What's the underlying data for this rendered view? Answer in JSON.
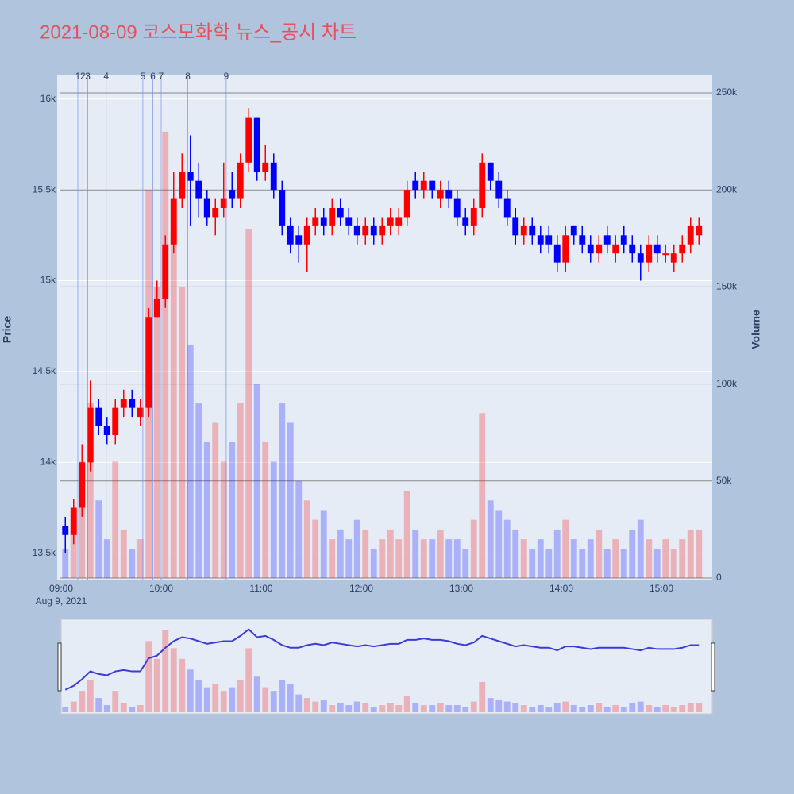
{
  "chart_data": {
    "type": "candlestick",
    "title": "2021-08-09 코스모화학 뉴스_공시 차트",
    "y_label": "Price",
    "y2_label": "Volume",
    "x_date_label": "Aug 9, 2021",
    "increasing_color": "#ff0000",
    "decreasing_color": "#0000ff",
    "xlim": [
      "09:00",
      "15:30"
    ],
    "xticks": [
      "09:00",
      "10:00",
      "11:00",
      "12:00",
      "13:00",
      "14:00",
      "15:00"
    ],
    "ylim": [
      13350,
      16130
    ],
    "yticks": [
      {
        "value": 13500,
        "label": "13.5k"
      },
      {
        "value": 14000,
        "label": "14k"
      },
      {
        "value": 14500,
        "label": "14.5k"
      },
      {
        "value": 15000,
        "label": "15k"
      },
      {
        "value": 15500,
        "label": "15.5k"
      },
      {
        "value": 16000,
        "label": "16k"
      }
    ],
    "y2lim": [
      0,
      250000
    ],
    "y2ticks": [
      0,
      {
        "value": 50000,
        "label": "50k"
      },
      {
        "value": 100000,
        "label": "100k"
      },
      {
        "value": 150000,
        "label": "150k"
      },
      {
        "value": 200000,
        "label": "200k"
      },
      {
        "value": 250000,
        "label": "250k"
      }
    ],
    "annotations": [
      {
        "label": "1",
        "x": "09:10"
      },
      {
        "label": "2",
        "x": "09:13"
      },
      {
        "label": "3",
        "x": "09:16"
      },
      {
        "label": "4",
        "x": "09:27"
      },
      {
        "label": "5",
        "x": "09:49"
      },
      {
        "label": "6",
        "x": "09:55"
      },
      {
        "label": "7",
        "x": "10:00"
      },
      {
        "label": "8",
        "x": "10:16"
      },
      {
        "label": "9",
        "x": "10:39"
      }
    ],
    "x": [
      "09:00",
      "09:05",
      "09:10",
      "09:15",
      "09:20",
      "09:25",
      "09:30",
      "09:35",
      "09:40",
      "09:45",
      "09:50",
      "09:55",
      "10:00",
      "10:05",
      "10:10",
      "10:15",
      "10:20",
      "10:25",
      "10:30",
      "10:35",
      "10:40",
      "10:45",
      "10:50",
      "10:55",
      "11:00",
      "11:05",
      "11:10",
      "11:15",
      "11:20",
      "11:25",
      "11:30",
      "11:35",
      "11:40",
      "11:45",
      "11:50",
      "11:55",
      "12:00",
      "12:05",
      "12:10",
      "12:15",
      "12:20",
      "12:25",
      "12:30",
      "12:35",
      "12:40",
      "12:45",
      "12:50",
      "12:55",
      "13:00",
      "13:05",
      "13:10",
      "13:15",
      "13:20",
      "13:25",
      "13:30",
      "13:35",
      "13:40",
      "13:45",
      "13:50",
      "13:55",
      "14:00",
      "14:05",
      "14:10",
      "14:15",
      "14:20",
      "14:25",
      "14:30",
      "14:35",
      "14:40",
      "14:45",
      "14:50",
      "14:55",
      "15:00",
      "15:05",
      "15:10",
      "15:15",
      "15:20"
    ],
    "open": [
      13650,
      13600,
      13750,
      14000,
      14300,
      14200,
      14150,
      14300,
      14350,
      14250,
      14300,
      14800,
      14900,
      15200,
      15450,
      15600,
      15550,
      15450,
      15350,
      15400,
      15500,
      15450,
      15650,
      15900,
      15600,
      15650,
      15500,
      15300,
      15250,
      15200,
      15300,
      15350,
      15300,
      15400,
      15350,
      15300,
      15250,
      15300,
      15250,
      15300,
      15300,
      15350,
      15550,
      15500,
      15550,
      15450,
      15500,
      15450,
      15350,
      15300,
      15400,
      15650,
      15550,
      15450,
      15350,
      15250,
      15300,
      15250,
      15250,
      15200,
      15100,
      15300,
      15250,
      15200,
      15150,
      15250,
      15150,
      15250,
      15200,
      15150,
      15100,
      15200,
      15150,
      15100,
      15150,
      15200,
      15250
    ],
    "high": [
      13700,
      13800,
      14100,
      14450,
      14350,
      14250,
      14350,
      14400,
      14400,
      14350,
      14850,
      15000,
      15250,
      15600,
      15700,
      15800,
      15650,
      15500,
      15450,
      15650,
      15600,
      15700,
      15950,
      15900,
      15750,
      15700,
      15550,
      15350,
      15300,
      15350,
      15400,
      15400,
      15450,
      15450,
      15400,
      15350,
      15350,
      15350,
      15350,
      15400,
      15400,
      15550,
      15600,
      15600,
      15550,
      15550,
      15550,
      15500,
      15400,
      15450,
      15700,
      15650,
      15600,
      15500,
      15400,
      15350,
      15350,
      15300,
      15300,
      15250,
      15300,
      15300,
      15300,
      15250,
      15250,
      15300,
      15250,
      15300,
      15250,
      15200,
      15250,
      15250,
      15200,
      15200,
      15250,
      15350,
      15350
    ],
    "low": [
      13500,
      13550,
      13700,
      13950,
      14150,
      14100,
      14100,
      14250,
      14250,
      14200,
      14250,
      14800,
      14850,
      15150,
      15400,
      15300,
      15350,
      15300,
      15250,
      15350,
      15400,
      15400,
      15600,
      15550,
      15550,
      15450,
      15250,
      15150,
      15100,
      15050,
      15250,
      15250,
      15250,
      15300,
      15250,
      15200,
      15200,
      15200,
      15200,
      15250,
      15250,
      15300,
      15450,
      15450,
      15450,
      15400,
      15400,
      15300,
      15250,
      15250,
      15350,
      15500,
      15400,
      15300,
      15200,
      15200,
      15200,
      15150,
      15150,
      15050,
      15050,
      15200,
      15150,
      15100,
      15100,
      15150,
      15100,
      15150,
      15100,
      15000,
      15050,
      15100,
      15100,
      15050,
      15100,
      15150,
      15200
    ],
    "close": [
      13600,
      13750,
      14000,
      14300,
      14200,
      14150,
      14300,
      14350,
      14300,
      14300,
      14800,
      14900,
      15200,
      15450,
      15600,
      15550,
      15450,
      15350,
      15400,
      15450,
      15450,
      15650,
      15900,
      15600,
      15650,
      15500,
      15300,
      15200,
      15200,
      15300,
      15350,
      15300,
      15400,
      15350,
      15300,
      15250,
      15300,
      15250,
      15300,
      15350,
      15350,
      15500,
      15500,
      15550,
      15500,
      15500,
      15450,
      15350,
      15300,
      15400,
      15650,
      15550,
      15450,
      15350,
      15250,
      15300,
      15250,
      15200,
      15200,
      15100,
      15250,
      15250,
      15200,
      15150,
      15200,
      15200,
      15200,
      15200,
      15150,
      15100,
      15200,
      15150,
      15150,
      15150,
      15200,
      15300,
      15300
    ],
    "volume": [
      15000,
      30000,
      60000,
      90000,
      40000,
      20000,
      60000,
      25000,
      15000,
      20000,
      200000,
      150000,
      230000,
      180000,
      150000,
      120000,
      90000,
      70000,
      80000,
      60000,
      70000,
      90000,
      180000,
      100000,
      70000,
      60000,
      90000,
      80000,
      50000,
      40000,
      30000,
      35000,
      20000,
      25000,
      20000,
      30000,
      25000,
      15000,
      20000,
      25000,
      20000,
      45000,
      25000,
      20000,
      20000,
      25000,
      20000,
      20000,
      15000,
      30000,
      85000,
      40000,
      35000,
      30000,
      25000,
      20000,
      15000,
      20000,
      15000,
      25000,
      30000,
      20000,
      15000,
      20000,
      25000,
      15000,
      20000,
      15000,
      25000,
      30000,
      20000,
      15000,
      20000,
      15000,
      20000,
      25000,
      25000
    ]
  }
}
